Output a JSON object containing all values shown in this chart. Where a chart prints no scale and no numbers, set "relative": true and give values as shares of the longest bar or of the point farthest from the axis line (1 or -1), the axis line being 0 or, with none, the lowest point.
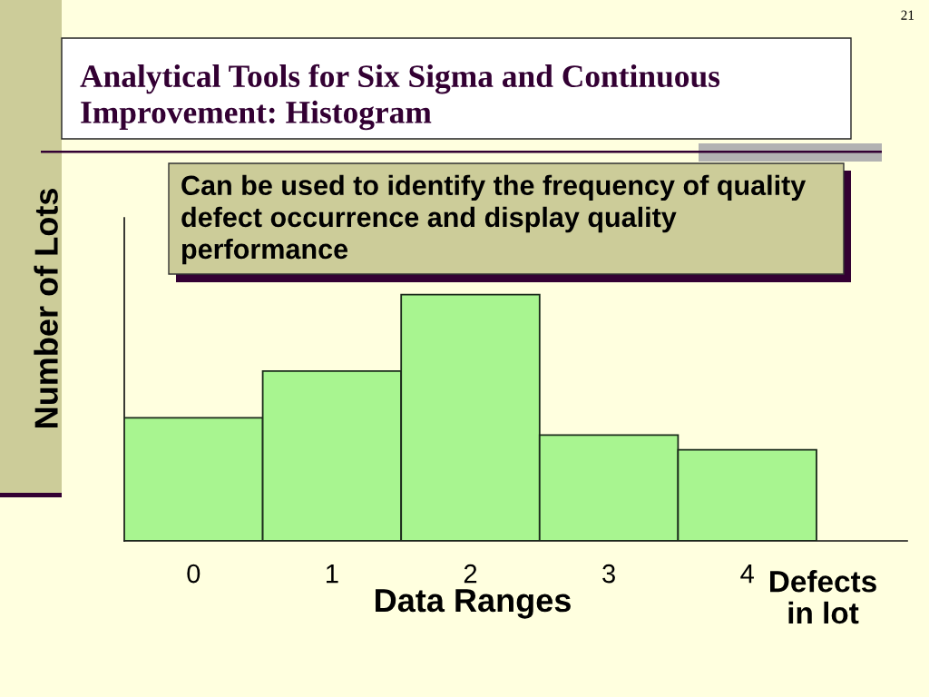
{
  "chart_data": {
    "type": "bar",
    "title": "Analytical Tools for Six Sigma and Continuous\nImprovement: Histogram",
    "xlabel": "Data Ranges",
    "ylabel": "Number of Lots",
    "categories": [
      "0",
      "1",
      "2",
      "3",
      "4"
    ],
    "values": [
      0.5,
      0.69,
      1,
      0.43,
      0.37
    ],
    "color": "#a8f590",
    "relative": true,
    "annotations": [
      "Can be used to identify the frequency of quality\ndefect occurrence and display quality\nperformance",
      "Defects\nin lot",
      "21"
    ]
  }
}
